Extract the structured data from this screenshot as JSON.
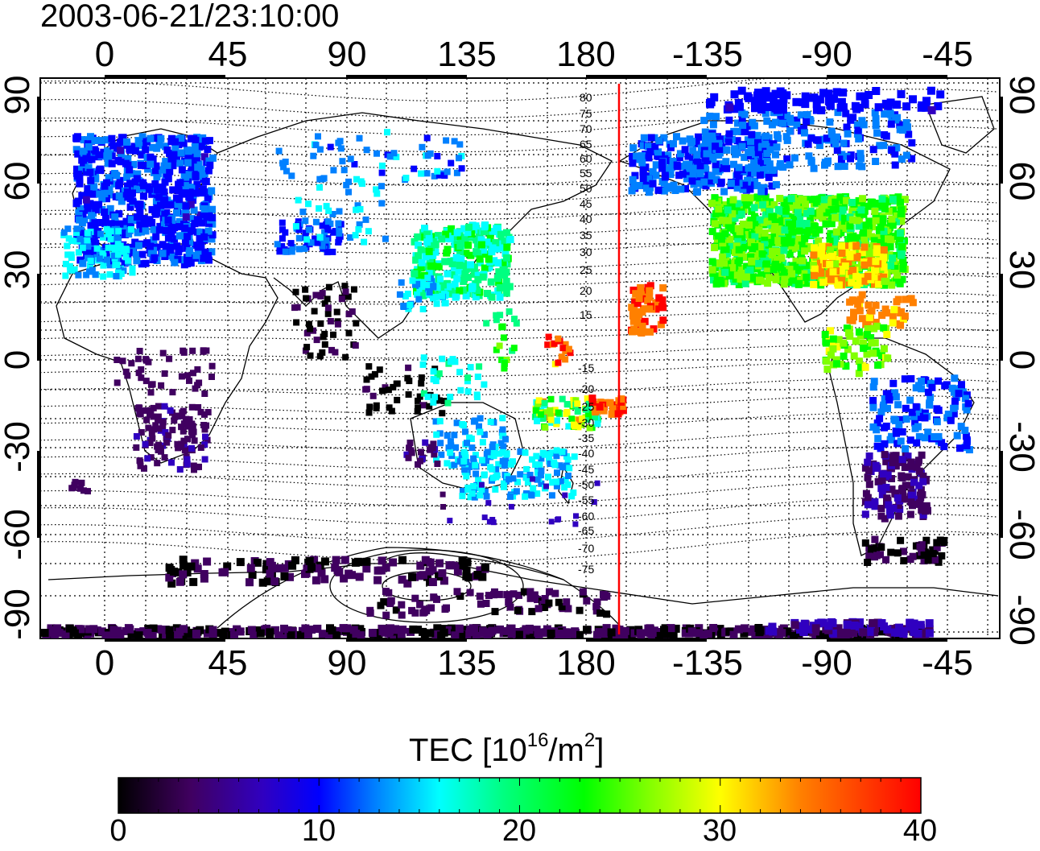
{
  "title": "2003-06-21/23:10:00",
  "x_ticks": [
    "0",
    "45",
    "90",
    "135",
    "180",
    "-135",
    "-90",
    "-45"
  ],
  "y_ticks": [
    "90",
    "60",
    "30",
    "0",
    "-30",
    "-60",
    "-90"
  ],
  "contour_labels": [
    "80",
    "75",
    "70",
    "65",
    "60",
    "55",
    "50",
    "45",
    "40",
    "35",
    "30",
    "25",
    "20",
    "15",
    "-15",
    "-20",
    "-25",
    "-30",
    "-35",
    "-40",
    "-45",
    "-50",
    "-55",
    "-60",
    "-65",
    "-70",
    "-75"
  ],
  "colorbar": {
    "title_main": "TEC  [10",
    "title_sup1": "16",
    "title_mid": "/m",
    "title_sup2": "2",
    "title_end": "]",
    "ticks": [
      "0",
      "10",
      "20",
      "30",
      "40"
    ],
    "min": 0,
    "max": 40,
    "colors": [
      "#000000",
      "#400060",
      "#3000c0",
      "#0000ff",
      "#0080ff",
      "#00ffff",
      "#00ff80",
      "#00ff00",
      "#80ff00",
      "#ffff00",
      "#ff8000",
      "#ff0000"
    ]
  },
  "terminator_line_color": "#ff0000"
}
